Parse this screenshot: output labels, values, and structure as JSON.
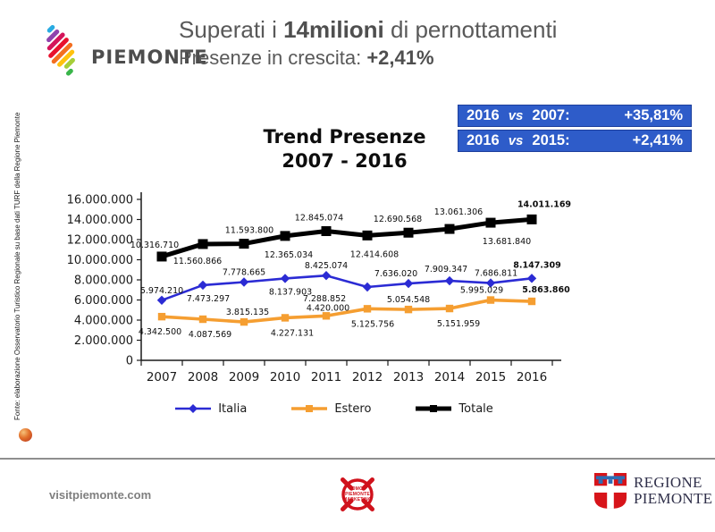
{
  "brand": {
    "logo_text": "PIEMONTE",
    "stripe_colors": [
      "#29abe2",
      "#8e44ad",
      "#d4145a",
      "#e8112d",
      "#f36f21",
      "#ffc20e",
      "#a6ce39",
      "#39b54a"
    ]
  },
  "header": {
    "title_prefix": "Superati i ",
    "title_bold": "14milioni",
    "title_suffix": " di pernottamenti",
    "subtitle_prefix": "Presenze in crescita: ",
    "subtitle_bold": "+2,41%"
  },
  "comparison": {
    "accent_color": "#2e5cc9",
    "rows": [
      {
        "year_a": "2016",
        "vs": "vs",
        "year_b": "2007:",
        "value": "+35,81%"
      },
      {
        "year_a": "2016",
        "vs": "vs",
        "year_b": "2015:",
        "value": "+2,41%"
      }
    ]
  },
  "source_note": "Fonte: elaborazione Osservatorio Turistico Regionale su base dati TURF della Regione Piemonte",
  "chart_data": {
    "type": "line",
    "title_line1": "Trend Presenze",
    "title_line2": "2007 - 2016",
    "categories": [
      "2007",
      "2008",
      "2009",
      "2010",
      "2011",
      "2012",
      "2013",
      "2014",
      "2015",
      "2016"
    ],
    "ylim": [
      0,
      16000000
    ],
    "ytick_step": 2000000,
    "grid": false,
    "legend_position": "bottom",
    "number_format": "thousands-dot",
    "series": [
      {
        "name": "Italia",
        "color": "#2b2bd4",
        "marker": "diamond",
        "line_width": 2.6,
        "bold_last_label": true,
        "values": [
          5974210,
          7473297,
          7778665,
          8137903,
          8425074,
          7288852,
          7636020,
          7909347,
          7686811,
          8147309
        ],
        "label_offsets": [
          [
            0,
            -8
          ],
          [
            6,
            18
          ],
          [
            0,
            -8
          ],
          [
            6,
            18
          ],
          [
            0,
            -8
          ],
          [
            -48,
            16
          ],
          [
            -14,
            -8
          ],
          [
            -4,
            -10
          ],
          [
            6,
            -8
          ],
          [
            6,
            -12
          ]
        ]
      },
      {
        "name": "Estero",
        "color": "#f59e31",
        "marker": "square",
        "line_width": 3.6,
        "bold_last_label": true,
        "values": [
          4342500,
          4087569,
          3815135,
          4227131,
          4420000,
          5125756,
          5054548,
          5151959,
          5995029,
          5863860
        ],
        "label_offsets": [
          [
            -2,
            20
          ],
          [
            8,
            20
          ],
          [
            4,
            -8
          ],
          [
            8,
            20
          ],
          [
            2,
            -6
          ],
          [
            6,
            20
          ],
          [
            0,
            -8
          ],
          [
            10,
            20
          ],
          [
            -10,
            -8
          ],
          [
            16,
            -10
          ]
        ]
      },
      {
        "name": "Totale",
        "color": "#000000",
        "marker": "square",
        "line_width": 5,
        "bold_last_label": true,
        "values": [
          10316710,
          11560866,
          11593800,
          12365034,
          12845074,
          12414608,
          12690568,
          13061306,
          13681840,
          14011169
        ],
        "label_offsets": [
          [
            -8,
            -10
          ],
          [
            -6,
            22
          ],
          [
            6,
            -12
          ],
          [
            4,
            24
          ],
          [
            -8,
            -12
          ],
          [
            8,
            24
          ],
          [
            -12,
            -12
          ],
          [
            10,
            -16
          ],
          [
            18,
            24
          ],
          [
            14,
            -14
          ]
        ]
      }
    ]
  },
  "footer": {
    "website": "visitpiemonte.com",
    "dmo_logo_lines": [
      "DMO",
      "PIEMONTE",
      "MARKETING"
    ],
    "regione": {
      "line1": "REGIONE",
      "line2": "PIEMONTE"
    }
  }
}
